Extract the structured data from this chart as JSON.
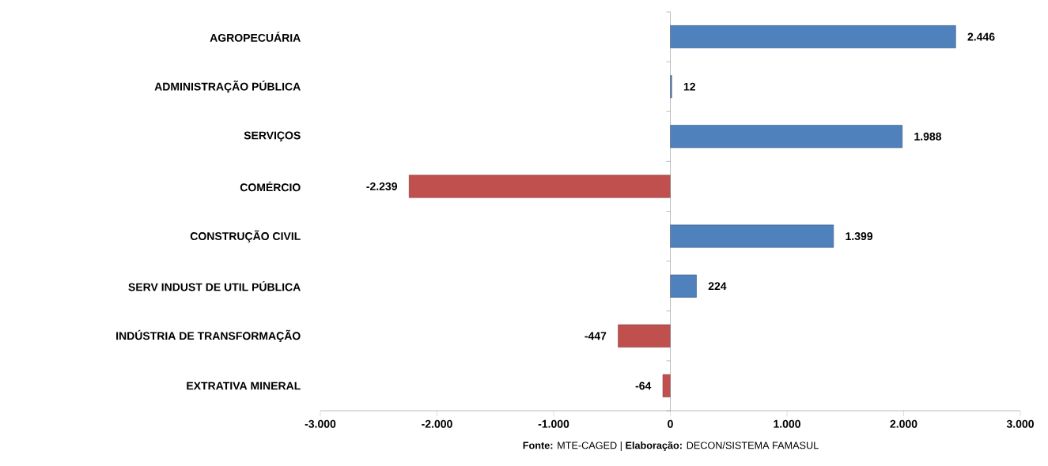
{
  "chart_data": {
    "type": "bar",
    "orientation": "horizontal",
    "categories": [
      "AGROPECUÁRIA",
      "ADMINISTRAÇÃO PÚBLICA",
      "SERVIÇOS",
      "COMÉRCIO",
      "CONSTRUÇÃO CIVIL",
      "SERV INDUST DE UTIL PÚBLICA",
      "INDÚSTRIA DE TRANSFORMAÇÃO",
      "EXTRATIVA MINERAL"
    ],
    "values": [
      2446,
      12,
      1988,
      -2239,
      1399,
      224,
      -447,
      -64
    ],
    "colors": [
      "#4f81bd",
      "#4f81bd",
      "#4f81bd",
      "#c0504d",
      "#4f81bd",
      "#4f81bd",
      "#c0504d",
      "#c0504d"
    ],
    "value_labels": [
      "2.446",
      "12",
      "1.988",
      "-2.239",
      "1.399",
      "224",
      "-447",
      "-64"
    ],
    "xlim": [
      -3000,
      3000
    ],
    "xticks": [
      {
        "value": -3000,
        "label": "-3.000"
      },
      {
        "value": -2000,
        "label": "-2.000"
      },
      {
        "value": -1000,
        "label": "-1.000"
      },
      0,
      {
        "value": 1000,
        "label": "1.000"
      },
      {
        "value": 2000,
        "label": "2.000"
      },
      {
        "value": 3000,
        "label": "3.000"
      }
    ],
    "annotations": [
      "**Fonte:** MTE-CAGED | **Elaboração:** DECON/SISTEMA FAMASUL"
    ]
  }
}
